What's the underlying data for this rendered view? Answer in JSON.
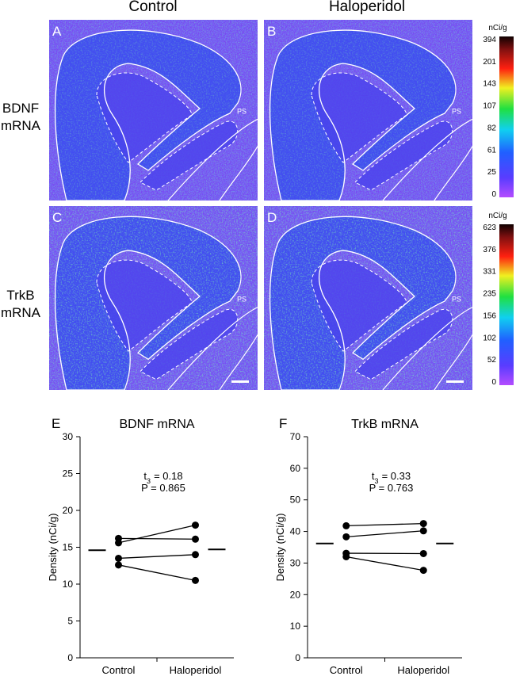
{
  "columns": [
    "Control",
    "Haloperidol"
  ],
  "rows": [
    [
      "BDNF",
      "mRNA"
    ],
    [
      "TrkB",
      "mRNA"
    ]
  ],
  "panels": [
    {
      "letter": "A",
      "ps": "PS"
    },
    {
      "letter": "B",
      "ps": "PS"
    },
    {
      "letter": "C",
      "ps": "PS"
    },
    {
      "letter": "D",
      "ps": "PS"
    }
  ],
  "colorbars": [
    {
      "unit": "nCi/g",
      "labels": [
        394,
        201,
        143,
        107,
        82,
        61,
        25,
        0
      ]
    },
    {
      "unit": "nCi/g",
      "labels": [
        623,
        376,
        331,
        235,
        156,
        102,
        52,
        0
      ]
    }
  ],
  "chart_data": [
    {
      "type": "scatter",
      "letter": "E",
      "title": "BDNF mRNA",
      "ylabel": "Density (nCi/g)",
      "categories": [
        "Control",
        "Haloperidol"
      ],
      "color": "#000000",
      "stat": {
        "symbol": "t",
        "subscript": "3",
        "rest": "= 0.18"
      },
      "p": "P = 0.865",
      "series": [
        {
          "values": [
            16.2,
            16.1
          ]
        },
        {
          "values": [
            15.6,
            18.0
          ]
        },
        {
          "values": [
            13.5,
            14.0
          ]
        },
        {
          "values": [
            12.6,
            10.5
          ]
        }
      ],
      "means": [
        14.6,
        14.7
      ],
      "ylim": [
        0,
        30
      ],
      "yticks": [
        0,
        5,
        10,
        15,
        20,
        25,
        30
      ]
    },
    {
      "type": "scatter",
      "letter": "F",
      "title": "TrkB mRNA",
      "ylabel": "Density (nCi/g)",
      "categories": [
        "Control",
        "Haloperidol"
      ],
      "color": "#000000",
      "stat": {
        "symbol": "t",
        "subscript": "3",
        "rest": "= 0.33"
      },
      "p": "P = 0.763",
      "series": [
        {
          "values": [
            41.8,
            42.5
          ]
        },
        {
          "values": [
            38.3,
            40.2
          ]
        },
        {
          "values": [
            33.1,
            33.0
          ]
        },
        {
          "values": [
            32.0,
            27.7
          ]
        }
      ],
      "means": [
        36.2,
        36.2
      ],
      "ylim": [
        0,
        70
      ],
      "yticks": [
        0,
        10,
        20,
        30,
        40,
        50,
        60,
        70
      ]
    }
  ]
}
